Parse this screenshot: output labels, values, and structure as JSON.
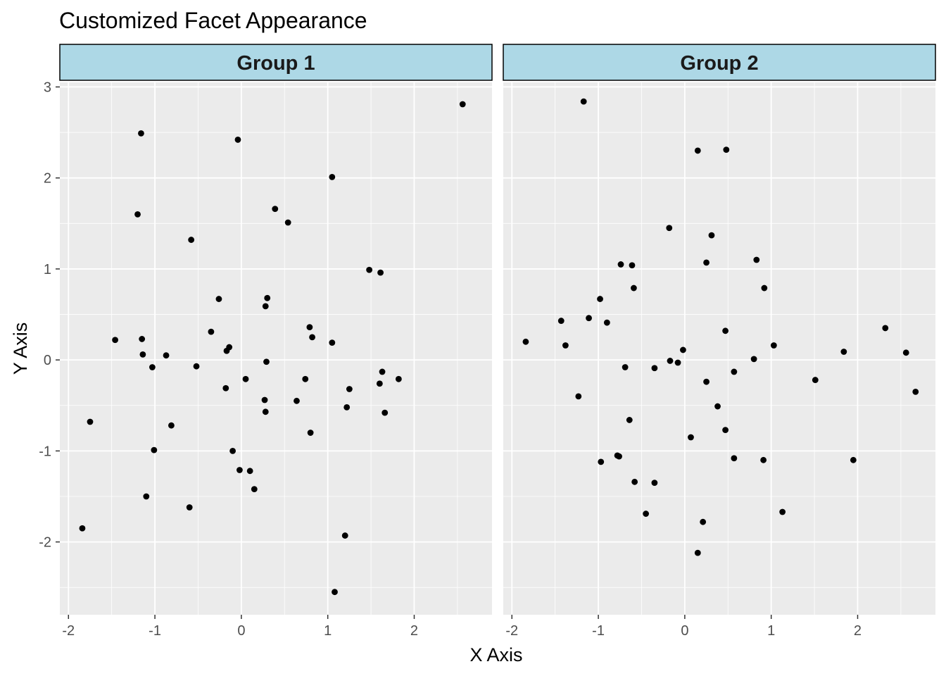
{
  "chart_data": {
    "type": "scatter",
    "title": "Customized Facet Appearance",
    "xlabel": "X Axis",
    "ylabel": "Y Axis",
    "xlim": [
      -2.1,
      2.9
    ],
    "ylim": [
      -2.8,
      3.05
    ],
    "x_ticks": [
      -2,
      -1,
      0,
      1,
      2
    ],
    "y_ticks": [
      -2,
      -1,
      0,
      1,
      2,
      3
    ],
    "x_tick_labels": [
      "-2",
      "-1",
      "0",
      "1",
      "2"
    ],
    "y_tick_labels": [
      "-2",
      "-1",
      "0",
      "1",
      "2",
      "3"
    ],
    "grid": true,
    "panel_background": "#EBEBEB",
    "grid_color": "#FFFFFF",
    "strip_fill": "#ADD8E6",
    "strip_border": "#000000",
    "point_color": "#000000",
    "facets": [
      {
        "label": "Group 1",
        "points": [
          {
            "x": 2.56,
            "y": 2.81
          },
          {
            "x": -0.04,
            "y": 2.42
          },
          {
            "x": -1.16,
            "y": 2.49
          },
          {
            "x": 1.05,
            "y": 2.01
          },
          {
            "x": -1.2,
            "y": 1.6
          },
          {
            "x": 0.39,
            "y": 1.66
          },
          {
            "x": 0.54,
            "y": 1.51
          },
          {
            "x": -0.58,
            "y": 1.32
          },
          {
            "x": 1.48,
            "y": 0.99
          },
          {
            "x": 1.61,
            "y": 0.96
          },
          {
            "x": -0.26,
            "y": 0.67
          },
          {
            "x": 0.3,
            "y": 0.68
          },
          {
            "x": 0.28,
            "y": 0.59
          },
          {
            "x": 0.79,
            "y": 0.36
          },
          {
            "x": -0.35,
            "y": 0.31
          },
          {
            "x": 0.82,
            "y": 0.25
          },
          {
            "x": -1.46,
            "y": 0.22
          },
          {
            "x": -1.15,
            "y": 0.23
          },
          {
            "x": 1.05,
            "y": 0.19
          },
          {
            "x": -0.14,
            "y": 0.14
          },
          {
            "x": -0.17,
            "y": 0.1
          },
          {
            "x": -1.14,
            "y": 0.06
          },
          {
            "x": -0.87,
            "y": 0.05
          },
          {
            "x": 0.29,
            "y": -0.02
          },
          {
            "x": -1.03,
            "y": -0.08
          },
          {
            "x": -0.52,
            "y": -0.07
          },
          {
            "x": 1.63,
            "y": -0.13
          },
          {
            "x": 0.05,
            "y": -0.21
          },
          {
            "x": 0.74,
            "y": -0.21
          },
          {
            "x": 1.82,
            "y": -0.21
          },
          {
            "x": 1.6,
            "y": -0.26
          },
          {
            "x": -0.18,
            "y": -0.31
          },
          {
            "x": 1.25,
            "y": -0.32
          },
          {
            "x": 0.27,
            "y": -0.44
          },
          {
            "x": 0.64,
            "y": -0.45
          },
          {
            "x": 1.22,
            "y": -0.52
          },
          {
            "x": 0.28,
            "y": -0.57
          },
          {
            "x": 1.66,
            "y": -0.58
          },
          {
            "x": -1.75,
            "y": -0.68
          },
          {
            "x": -0.81,
            "y": -0.72
          },
          {
            "x": 0.8,
            "y": -0.8
          },
          {
            "x": -1.01,
            "y": -0.99
          },
          {
            "x": -0.1,
            "y": -1.0
          },
          {
            "x": -0.02,
            "y": -1.21
          },
          {
            "x": 0.1,
            "y": -1.22
          },
          {
            "x": 0.15,
            "y": -1.42
          },
          {
            "x": -1.1,
            "y": -1.5
          },
          {
            "x": -0.6,
            "y": -1.62
          },
          {
            "x": -1.84,
            "y": -1.85
          },
          {
            "x": 1.2,
            "y": -1.93
          },
          {
            "x": 1.08,
            "y": -2.55
          }
        ]
      },
      {
        "label": "Group 2",
        "points": [
          {
            "x": -1.17,
            "y": 2.84
          },
          {
            "x": 0.15,
            "y": 2.3
          },
          {
            "x": 0.48,
            "y": 2.31
          },
          {
            "x": -0.18,
            "y": 1.45
          },
          {
            "x": 0.31,
            "y": 1.37
          },
          {
            "x": 0.83,
            "y": 1.1
          },
          {
            "x": -0.74,
            "y": 1.05
          },
          {
            "x": -0.61,
            "y": 1.04
          },
          {
            "x": 0.25,
            "y": 1.07
          },
          {
            "x": -0.59,
            "y": 0.79
          },
          {
            "x": 0.92,
            "y": 0.79
          },
          {
            "x": -0.98,
            "y": 0.67
          },
          {
            "x": -1.11,
            "y": 0.46
          },
          {
            "x": -1.43,
            "y": 0.43
          },
          {
            "x": -0.9,
            "y": 0.41
          },
          {
            "x": 2.32,
            "y": 0.35
          },
          {
            "x": 0.47,
            "y": 0.32
          },
          {
            "x": -1.38,
            "y": 0.16
          },
          {
            "x": 1.03,
            "y": 0.16
          },
          {
            "x": -1.84,
            "y": 0.2
          },
          {
            "x": -0.02,
            "y": 0.11
          },
          {
            "x": 1.84,
            "y": 0.09
          },
          {
            "x": 2.56,
            "y": 0.08
          },
          {
            "x": 0.8,
            "y": 0.01
          },
          {
            "x": -0.17,
            "y": -0.01
          },
          {
            "x": -0.08,
            "y": -0.03
          },
          {
            "x": -0.69,
            "y": -0.08
          },
          {
            "x": -0.35,
            "y": -0.09
          },
          {
            "x": 0.57,
            "y": -0.13
          },
          {
            "x": 1.51,
            "y": -0.22
          },
          {
            "x": 0.25,
            "y": -0.24
          },
          {
            "x": 2.67,
            "y": -0.35
          },
          {
            "x": -1.23,
            "y": -0.4
          },
          {
            "x": 0.38,
            "y": -0.51
          },
          {
            "x": -0.64,
            "y": -0.66
          },
          {
            "x": 0.47,
            "y": -0.77
          },
          {
            "x": 0.07,
            "y": -0.85
          },
          {
            "x": -0.78,
            "y": -1.05
          },
          {
            "x": -0.76,
            "y": -1.06
          },
          {
            "x": 0.57,
            "y": -1.08
          },
          {
            "x": 0.91,
            "y": -1.1
          },
          {
            "x": 1.95,
            "y": -1.1
          },
          {
            "x": -0.97,
            "y": -1.12
          },
          {
            "x": -0.58,
            "y": -1.34
          },
          {
            "x": -0.35,
            "y": -1.35
          },
          {
            "x": 1.13,
            "y": -1.67
          },
          {
            "x": -0.45,
            "y": -1.69
          },
          {
            "x": 0.21,
            "y": -1.78
          },
          {
            "x": 0.15,
            "y": -2.12
          }
        ]
      }
    ]
  }
}
